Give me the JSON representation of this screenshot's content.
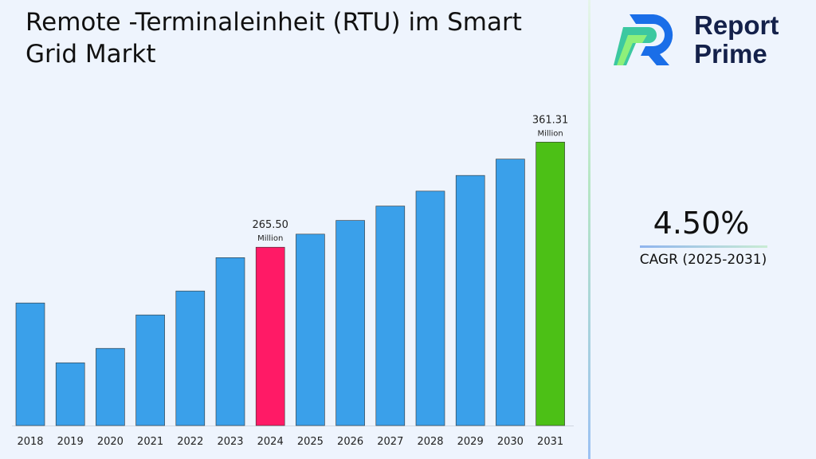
{
  "header": {
    "title": "Remote -Terminaleinheit (RTU) im Smart Grid Markt"
  },
  "brand": {
    "name_line1": "Report",
    "name_line2": "Prime"
  },
  "cagr": {
    "value": "4.50%",
    "label": "CAGR (2025-2031)"
  },
  "colors": {
    "default_bar": "#3aa0ea",
    "highlight_2024": "#ff1a66",
    "highlight_2031": "#4cc016"
  },
  "chart_data": {
    "type": "bar",
    "categories": [
      "2018",
      "2019",
      "2020",
      "2021",
      "2022",
      "2023",
      "2024",
      "2025",
      "2026",
      "2027",
      "2028",
      "2029",
      "2030",
      "2031"
    ],
    "values": [
      214.7,
      160.2,
      173.3,
      203.8,
      225.6,
      256.0,
      265.5,
      277.4,
      289.9,
      303.0,
      316.6,
      330.9,
      345.8,
      361.31
    ],
    "data_labels": [
      {
        "index": 6,
        "value": "265.50",
        "unit": "Million"
      },
      {
        "index": 13,
        "value": "361.31",
        "unit": "Million"
      }
    ],
    "xlabel": "",
    "ylabel": "",
    "ylim": [
      103,
      400
    ],
    "grid": false
  }
}
